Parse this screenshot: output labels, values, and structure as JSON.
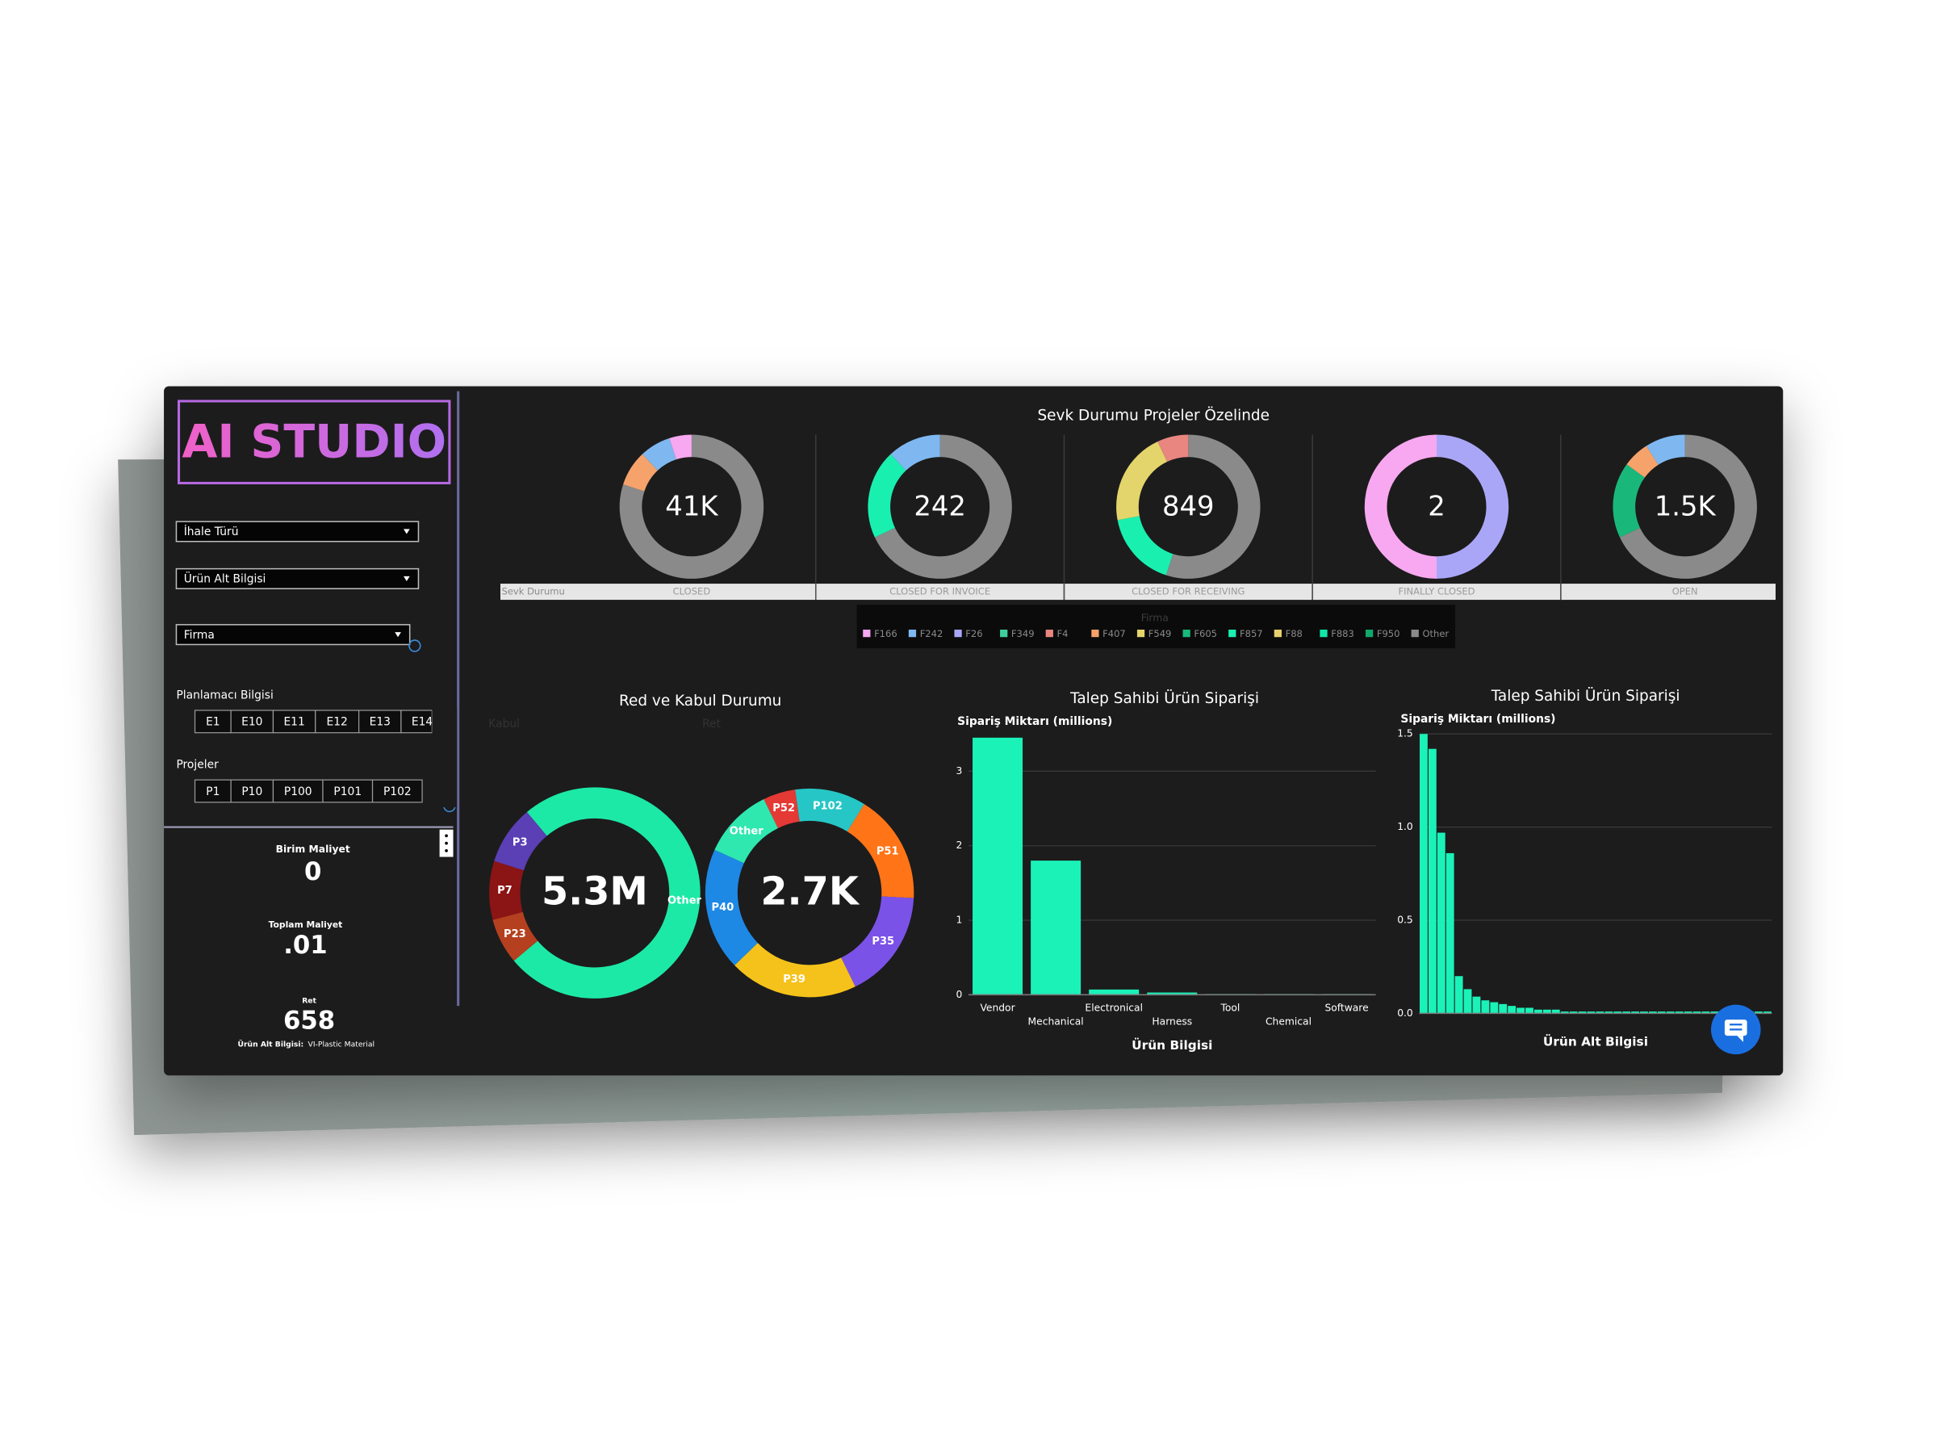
{
  "sidebar": {
    "logo": "AI STUDIO",
    "filters": [
      "İhale Türü",
      "Ürün Alt Bilgisi",
      "Firma"
    ],
    "planner": {
      "label": "Planlamacı Bilgisi",
      "chips": [
        "E1",
        "E10",
        "E11",
        "E12",
        "E13",
        "E14"
      ]
    },
    "projects": {
      "label": "Projeler",
      "chips": [
        "P1",
        "P10",
        "P100",
        "P101",
        "P102"
      ]
    },
    "kpis": [
      {
        "label": "Birim Maliyet",
        "value": "0"
      },
      {
        "label": "Toplam Maliyet",
        "value": ".01"
      },
      {
        "label": "Ret",
        "value": "658"
      }
    ],
    "footnote": {
      "label": "Ürün Alt Bilgisi:",
      "value": "VI-Plastic Material"
    }
  },
  "chart_data": [
    {
      "type": "donut",
      "title": "Sevk Durumu Projeler Özelinde",
      "axis_label": "Sevk Durumu",
      "categories": [
        "CLOSED",
        "CLOSED FOR INVOICE",
        "CLOSED FOR RECEIVING",
        "FINALLY CLOSED",
        "OPEN"
      ],
      "center_labels": [
        "41K",
        "242",
        "849",
        "2",
        "1.5K"
      ],
      "legend_title": "Firma",
      "series": [
        {
          "name": "F166",
          "color": "#f7a8f0",
          "values": [
            5,
            0,
            0,
            50,
            0
          ]
        },
        {
          "name": "F242",
          "color": "#7fb8f0",
          "values": [
            7,
            12,
            0,
            0,
            9
          ]
        },
        {
          "name": "F26",
          "color": "#aaa6f7",
          "values": [
            0,
            0,
            0,
            50,
            0
          ]
        },
        {
          "name": "F349",
          "color": "#3fcf9f",
          "values": [
            0,
            0,
            0,
            0,
            0
          ]
        },
        {
          "name": "F4",
          "color": "#e8867f",
          "values": [
            0,
            0,
            7,
            0,
            0
          ]
        },
        {
          "name": "F407",
          "color": "#f5a36b",
          "values": [
            8,
            0,
            0,
            0,
            6
          ]
        },
        {
          "name": "F549",
          "color": "#e3d56b",
          "values": [
            0,
            0,
            21,
            0,
            0
          ]
        },
        {
          "name": "F605",
          "color": "#19b87a",
          "values": [
            0,
            0,
            0,
            0,
            17
          ]
        },
        {
          "name": "F857",
          "color": "#19f0b0",
          "values": [
            0,
            20,
            17,
            0,
            0
          ]
        },
        {
          "name": "F88",
          "color": "#e8cf6e",
          "values": [
            0,
            0,
            0,
            0,
            0
          ]
        },
        {
          "name": "F883",
          "color": "#12e6a8",
          "values": [
            0,
            0,
            0,
            0,
            0
          ]
        },
        {
          "name": "F950",
          "color": "#12a86b",
          "values": [
            0,
            0,
            0,
            0,
            0
          ]
        },
        {
          "name": "Other",
          "color": "#8a8a8a",
          "values": [
            80,
            68,
            55,
            0,
            68
          ]
        }
      ]
    },
    {
      "type": "donut",
      "title": "Red ve Kabul Durumu",
      "charts": [
        {
          "label": "Kabul",
          "center": "5.3M",
          "categories": [
            "Other",
            "P23",
            "P7",
            "P3"
          ],
          "values": [
            75,
            7,
            9,
            9
          ],
          "colors": [
            "#1de9a6",
            "#b5401f",
            "#8b1414",
            "#5b3fb5"
          ]
        },
        {
          "label": "Ret",
          "center": "2.7K",
          "categories": [
            "P102",
            "P51",
            "P35",
            "P39",
            "P40",
            "Other",
            "P52"
          ],
          "values": [
            11,
            17,
            17,
            20,
            19,
            11,
            5
          ],
          "colors": [
            "#26c6c6",
            "#ff7417",
            "#7b52e8",
            "#f5c21b",
            "#1e88e5",
            "#2ee8b0",
            "#e53935"
          ]
        }
      ]
    },
    {
      "type": "bar",
      "title": "Talep Sahibi Ürün Siparişi",
      "y_label": "Sipariş Miktarı (millions)",
      "x_label": "Ürün  Bilgisi",
      "categories": [
        "Vendor",
        "Mechanical",
        "Electronical",
        "Harness",
        "Tool",
        "Chemical",
        "Software"
      ],
      "values": [
        3.45,
        1.8,
        0.07,
        0.03,
        0.01,
        0.01,
        0.01
      ],
      "color": "#1af2b8",
      "ylim": [
        0,
        3.5
      ],
      "yticks": [
        0,
        1,
        2,
        3
      ],
      "grid": true
    },
    {
      "type": "bar",
      "title": "Talep Sahibi Ürün Siparişi",
      "y_label": "Sipariş Miktarı (millions)",
      "x_label": "Ürün Alt Bilgisi",
      "categories": [
        null,
        null,
        null,
        null,
        null,
        null,
        null,
        null,
        null,
        null,
        null,
        null,
        null,
        null,
        null,
        null,
        null,
        null,
        null,
        null,
        null,
        null,
        null,
        null,
        null,
        null,
        null,
        null,
        null,
        null,
        null,
        null,
        null,
        null,
        null,
        null,
        null,
        null,
        null,
        null
      ],
      "values": [
        1.5,
        1.42,
        0.97,
        0.86,
        0.2,
        0.13,
        0.09,
        0.07,
        0.06,
        0.05,
        0.04,
        0.03,
        0.03,
        0.02,
        0.02,
        0.02,
        0.01,
        0.01,
        0.01,
        0.01,
        0.01,
        0.01,
        0.01,
        0.01,
        0.01,
        0.01,
        0.01,
        0.01,
        0.01,
        0.01,
        0.01,
        0.01,
        0.01,
        0.01,
        0.01,
        0.01,
        0.01,
        0.01,
        0.01,
        0.01
      ],
      "color": "#1af2b8",
      "ylim": [
        0,
        1.5
      ],
      "yticks": [
        {
          "value": 0,
          "label": "0.0"
        },
        {
          "value": 0.5,
          "label": "0.5"
        },
        {
          "value": 1,
          "label": "1.0"
        },
        {
          "value": 1.5,
          "label": "1.5"
        }
      ],
      "grid": true
    }
  ]
}
